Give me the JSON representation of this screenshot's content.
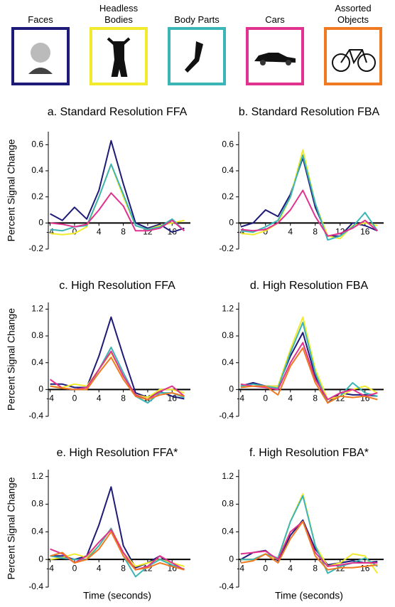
{
  "chart_data": [
    {
      "type": "line",
      "title": "a. Standard Resolution FFA",
      "y_label": "Percent Signal Change",
      "x": [
        -4,
        -2,
        0,
        2,
        4,
        6,
        8,
        10,
        12,
        14,
        16,
        18
      ],
      "xlim": [
        -5,
        19
      ],
      "xticks": [
        -4,
        0,
        4,
        8,
        12,
        16
      ],
      "ylim": [
        -0.2,
        0.7
      ],
      "yticks": [
        -0.2,
        0,
        0.2,
        0.4,
        0.6
      ],
      "series": [
        {
          "color": "#1e1b78",
          "values": [
            0.07,
            0.02,
            0.12,
            0.03,
            0.25,
            0.63,
            0.3,
            0.0,
            -0.04,
            -0.01,
            -0.07,
            -0.04
          ]
        },
        {
          "color": "#f2ea2c",
          "values": [
            -0.08,
            -0.09,
            -0.08,
            -0.03,
            0.2,
            0.45,
            0.2,
            -0.02,
            -0.05,
            -0.02,
            0.0,
            0.02
          ]
        },
        {
          "color": "#3bb5b5",
          "values": [
            -0.05,
            -0.06,
            -0.03,
            -0.02,
            0.2,
            0.45,
            0.22,
            -0.02,
            -0.05,
            -0.03,
            0.03,
            -0.06
          ]
        },
        {
          "color": "#e0328e",
          "values": [
            0.0,
            -0.01,
            -0.03,
            -0.01,
            0.1,
            0.23,
            0.13,
            -0.06,
            -0.06,
            -0.04,
            0.02,
            -0.06
          ]
        }
      ]
    },
    {
      "type": "line",
      "title": "b. Standard Resolution FBA",
      "x": [
        -4,
        -2,
        0,
        2,
        4,
        6,
        8,
        10,
        12,
        14,
        16,
        18
      ],
      "xlim": [
        -5,
        19
      ],
      "xticks": [
        -4,
        0,
        4,
        8,
        12,
        16
      ],
      "ylim": [
        -0.2,
        0.7
      ],
      "yticks": [
        -0.2,
        0,
        0.2,
        0.4,
        0.6
      ],
      "series": [
        {
          "color": "#1e1b78",
          "values": [
            -0.03,
            0.0,
            0.1,
            0.05,
            0.22,
            0.5,
            0.12,
            -0.1,
            -0.1,
            0.0,
            -0.02,
            -0.06
          ]
        },
        {
          "color": "#f2ea2c",
          "values": [
            -0.08,
            -0.09,
            -0.06,
            0.0,
            0.2,
            0.56,
            0.15,
            -0.1,
            -0.12,
            -0.02,
            0.0,
            -0.02
          ]
        },
        {
          "color": "#3bb5b5",
          "values": [
            -0.06,
            -0.07,
            -0.03,
            0.02,
            0.2,
            0.52,
            0.15,
            -0.13,
            -0.1,
            -0.03,
            0.08,
            -0.06
          ]
        },
        {
          "color": "#e0328e",
          "values": [
            -0.05,
            -0.06,
            -0.05,
            0.0,
            0.1,
            0.25,
            0.05,
            -0.1,
            -0.08,
            -0.04,
            0.02,
            -0.06
          ]
        }
      ]
    },
    {
      "type": "line",
      "title": "c. High Resolution FFA",
      "y_label": "Percent Signal Change",
      "x": [
        -4,
        -2,
        0,
        2,
        4,
        6,
        8,
        10,
        12,
        14,
        16,
        18
      ],
      "xlim": [
        -5,
        19
      ],
      "xticks": [
        -4,
        0,
        4,
        8,
        12,
        16
      ],
      "ylim": [
        -0.4,
        1.3
      ],
      "yticks": [
        -0.4,
        0,
        0.4,
        0.8,
        1.2
      ],
      "series": [
        {
          "name": "Faces",
          "color": "#1e1b78",
          "values": [
            0.08,
            0.08,
            0.03,
            0.03,
            0.5,
            1.08,
            0.5,
            -0.05,
            -0.12,
            -0.03,
            -0.1,
            -0.14
          ]
        },
        {
          "name": "Headless Bodies",
          "color": "#f2ea2c",
          "values": [
            0.05,
            0.03,
            0.08,
            0.05,
            0.3,
            0.55,
            0.2,
            -0.08,
            -0.12,
            0.0,
            0.0,
            -0.05
          ]
        },
        {
          "name": "Body Parts",
          "color": "#3bb5b5",
          "values": [
            0.05,
            0.02,
            0.0,
            0.0,
            0.3,
            0.63,
            0.25,
            -0.1,
            -0.2,
            -0.05,
            -0.05,
            -0.12
          ]
        },
        {
          "name": "Cars",
          "color": "#e0328e",
          "values": [
            0.15,
            0.02,
            0.0,
            0.03,
            0.3,
            0.57,
            0.2,
            -0.08,
            -0.15,
            -0.03,
            0.05,
            -0.1
          ]
        },
        {
          "name": "Assorted Objects",
          "color": "#f07a22",
          "values": [
            0.05,
            0.02,
            0.0,
            0.0,
            0.25,
            0.48,
            0.15,
            -0.1,
            -0.15,
            -0.08,
            -0.05,
            -0.1
          ]
        }
      ]
    },
    {
      "type": "line",
      "title": "d. High Resolution FBA",
      "x": [
        -4,
        -2,
        0,
        2,
        4,
        6,
        8,
        10,
        12,
        14,
        16,
        18
      ],
      "xlim": [
        -5,
        19
      ],
      "xticks": [
        -4,
        0,
        4,
        8,
        12,
        16
      ],
      "ylim": [
        -0.4,
        1.3
      ],
      "yticks": [
        -0.4,
        0,
        0.4,
        0.8,
        1.2
      ],
      "series": [
        {
          "color": "#1e1b78",
          "values": [
            0.05,
            0.1,
            0.05,
            0.05,
            0.5,
            0.85,
            0.2,
            -0.2,
            -0.05,
            -0.08,
            -0.08,
            -0.1
          ]
        },
        {
          "color": "#f2ea2c",
          "values": [
            0.05,
            0.05,
            0.05,
            0.05,
            0.6,
            1.08,
            0.3,
            -0.15,
            -0.1,
            0.0,
            0.05,
            -0.05
          ]
        },
        {
          "color": "#3bb5b5",
          "values": [
            0.05,
            0.08,
            0.05,
            0.02,
            0.55,
            1.0,
            0.25,
            -0.2,
            -0.1,
            0.1,
            -0.05,
            -0.1
          ]
        },
        {
          "color": "#e0328e",
          "values": [
            0.08,
            0.05,
            0.03,
            0.0,
            0.4,
            0.7,
            0.15,
            -0.15,
            -0.05,
            0.0,
            -0.1,
            -0.05
          ]
        },
        {
          "color": "#f07a22",
          "values": [
            0.03,
            0.05,
            0.05,
            -0.08,
            0.35,
            0.62,
            0.1,
            -0.2,
            -0.1,
            -0.12,
            -0.1,
            -0.15
          ]
        }
      ]
    },
    {
      "type": "line",
      "title": "e. High Resolution FFA*",
      "y_label": "Percent Signal Change",
      "x_label": "Time (seconds)",
      "x": [
        -4,
        -2,
        0,
        2,
        4,
        6,
        8,
        10,
        12,
        14,
        16,
        18
      ],
      "xlim": [
        -5,
        19
      ],
      "xticks": [
        -4,
        0,
        4,
        8,
        12,
        16
      ],
      "ylim": [
        -0.4,
        1.3
      ],
      "yticks": [
        -0.4,
        0,
        0.4,
        0.8,
        1.2
      ],
      "series": [
        {
          "color": "#1e1b78",
          "values": [
            0.05,
            0.05,
            0.0,
            0.05,
            0.5,
            1.05,
            0.2,
            -0.12,
            -0.05,
            0.05,
            -0.1,
            -0.14
          ]
        },
        {
          "color": "#f2ea2c",
          "values": [
            0.0,
            0.03,
            0.08,
            0.03,
            0.2,
            0.45,
            0.1,
            -0.1,
            -0.05,
            0.0,
            -0.05,
            -0.1
          ]
        },
        {
          "color": "#3bb5b5",
          "values": [
            0.05,
            0.02,
            0.0,
            0.0,
            0.2,
            0.45,
            0.05,
            -0.25,
            -0.1,
            0.0,
            -0.08,
            -0.15
          ]
        },
        {
          "color": "#e0328e",
          "values": [
            0.15,
            0.08,
            -0.05,
            0.05,
            0.25,
            0.43,
            0.1,
            -0.15,
            -0.1,
            0.05,
            -0.05,
            -0.15
          ]
        },
        {
          "color": "#f07a22",
          "values": [
            0.05,
            0.1,
            -0.05,
            0.0,
            0.15,
            0.4,
            0.05,
            -0.15,
            -0.12,
            -0.05,
            -0.1,
            -0.15
          ]
        }
      ]
    },
    {
      "type": "line",
      "title": "f. High Resolution FBA*",
      "x_label": "Time (seconds)",
      "x": [
        -4,
        -2,
        0,
        2,
        4,
        6,
        8,
        10,
        12,
        14,
        16,
        18
      ],
      "xlim": [
        -5,
        19
      ],
      "xticks": [
        -4,
        0,
        4,
        8,
        12,
        16
      ],
      "ylim": [
        -0.4,
        1.3
      ],
      "yticks": [
        -0.4,
        0,
        0.4,
        0.8,
        1.2
      ],
      "series": [
        {
          "color": "#1e1b78",
          "values": [
            0.0,
            0.1,
            0.13,
            -0.02,
            0.35,
            0.57,
            0.15,
            -0.08,
            -0.05,
            -0.02,
            -0.05,
            -0.03
          ]
        },
        {
          "color": "#f2ea2c",
          "values": [
            0.0,
            0.0,
            0.08,
            0.0,
            0.55,
            0.95,
            0.2,
            -0.1,
            -0.05,
            0.08,
            0.05,
            -0.2
          ]
        },
        {
          "color": "#3bb5b5",
          "values": [
            0.0,
            0.0,
            0.08,
            0.02,
            0.55,
            0.92,
            0.2,
            -0.2,
            -0.1,
            -0.05,
            0.02,
            -0.1
          ]
        },
        {
          "color": "#e0328e",
          "values": [
            0.08,
            0.1,
            0.12,
            0.0,
            0.4,
            0.55,
            0.1,
            -0.1,
            -0.08,
            -0.05,
            -0.05,
            -0.05
          ]
        },
        {
          "color": "#f07a22",
          "values": [
            -0.05,
            -0.02,
            0.08,
            -0.05,
            0.3,
            0.55,
            0.05,
            -0.15,
            -0.12,
            -0.12,
            -0.1,
            -0.08
          ]
        }
      ]
    }
  ]
}
